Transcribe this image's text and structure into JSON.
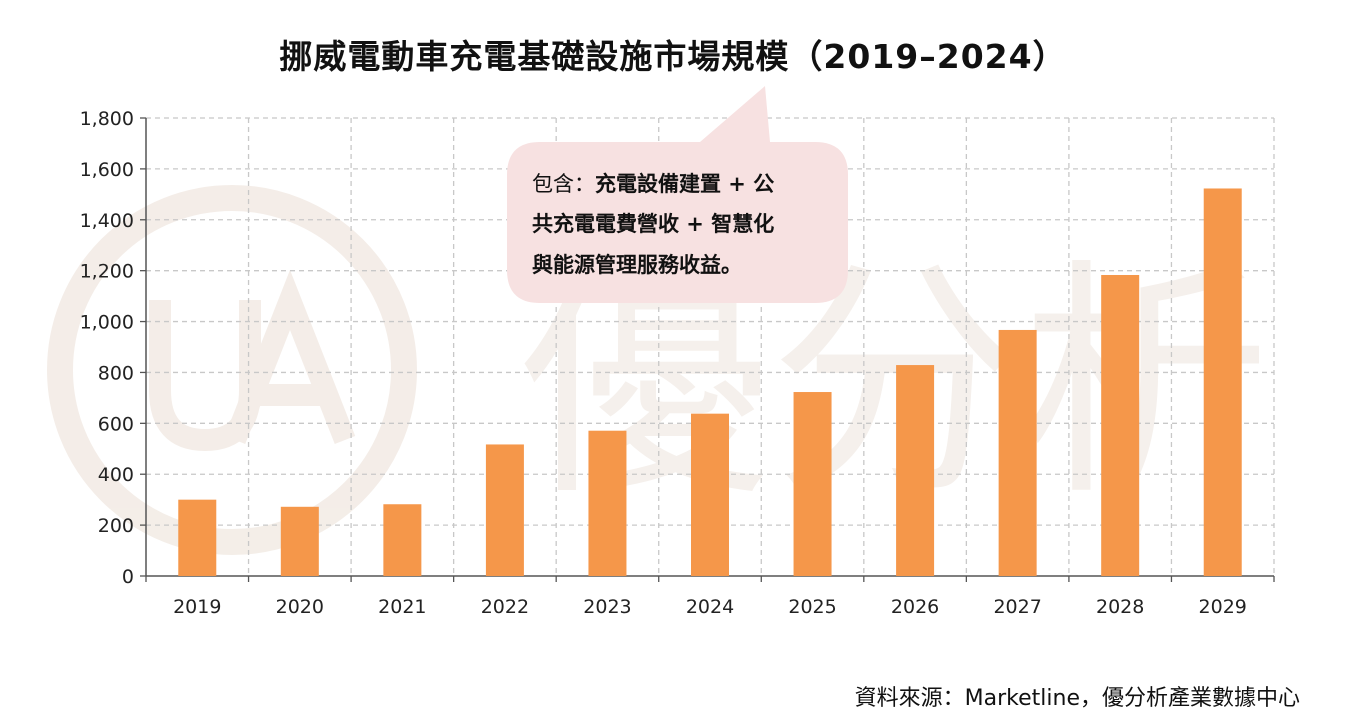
{
  "title": "挪威電動車充電基礎設施市場規模（2019–2024）",
  "source": "資料來源：Marketline，優分析產業數據中心",
  "callout": {
    "lines": [
      {
        "prefix": "包含：",
        "text": "充電設備建置 + 公"
      },
      {
        "prefix": "",
        "text": "共充電電費營收 + 智慧化"
      },
      {
        "prefix": "",
        "text": "與能源管理服務收益。"
      }
    ]
  },
  "colors": {
    "bar": "#f5974a",
    "grid": "#c8c8c8",
    "callout_bg": "#f7e1e1",
    "watermark": "#f3ece6"
  },
  "watermark_text": "優分析",
  "chart_data": {
    "type": "bar",
    "title": "挪威電動車充電基礎設施市場規模（2019–2024）",
    "categories": [
      "2019",
      "2020",
      "2021",
      "2022",
      "2023",
      "2024",
      "2025",
      "2026",
      "2027",
      "2028",
      "2029"
    ],
    "values": [
      300,
      272,
      282,
      517,
      571,
      638,
      723,
      829,
      967,
      1183,
      1523
    ],
    "ylim": [
      0,
      1800
    ],
    "yticks": [
      0,
      200,
      400,
      600,
      800,
      1000,
      1200,
      1400,
      1600,
      1800
    ],
    "ytick_labels": [
      "0",
      "200",
      "400",
      "600",
      "800",
      "1,000",
      "1,200",
      "1,400",
      "1,600",
      "1,800"
    ],
    "grid": true,
    "xlabel": "",
    "ylabel": ""
  }
}
